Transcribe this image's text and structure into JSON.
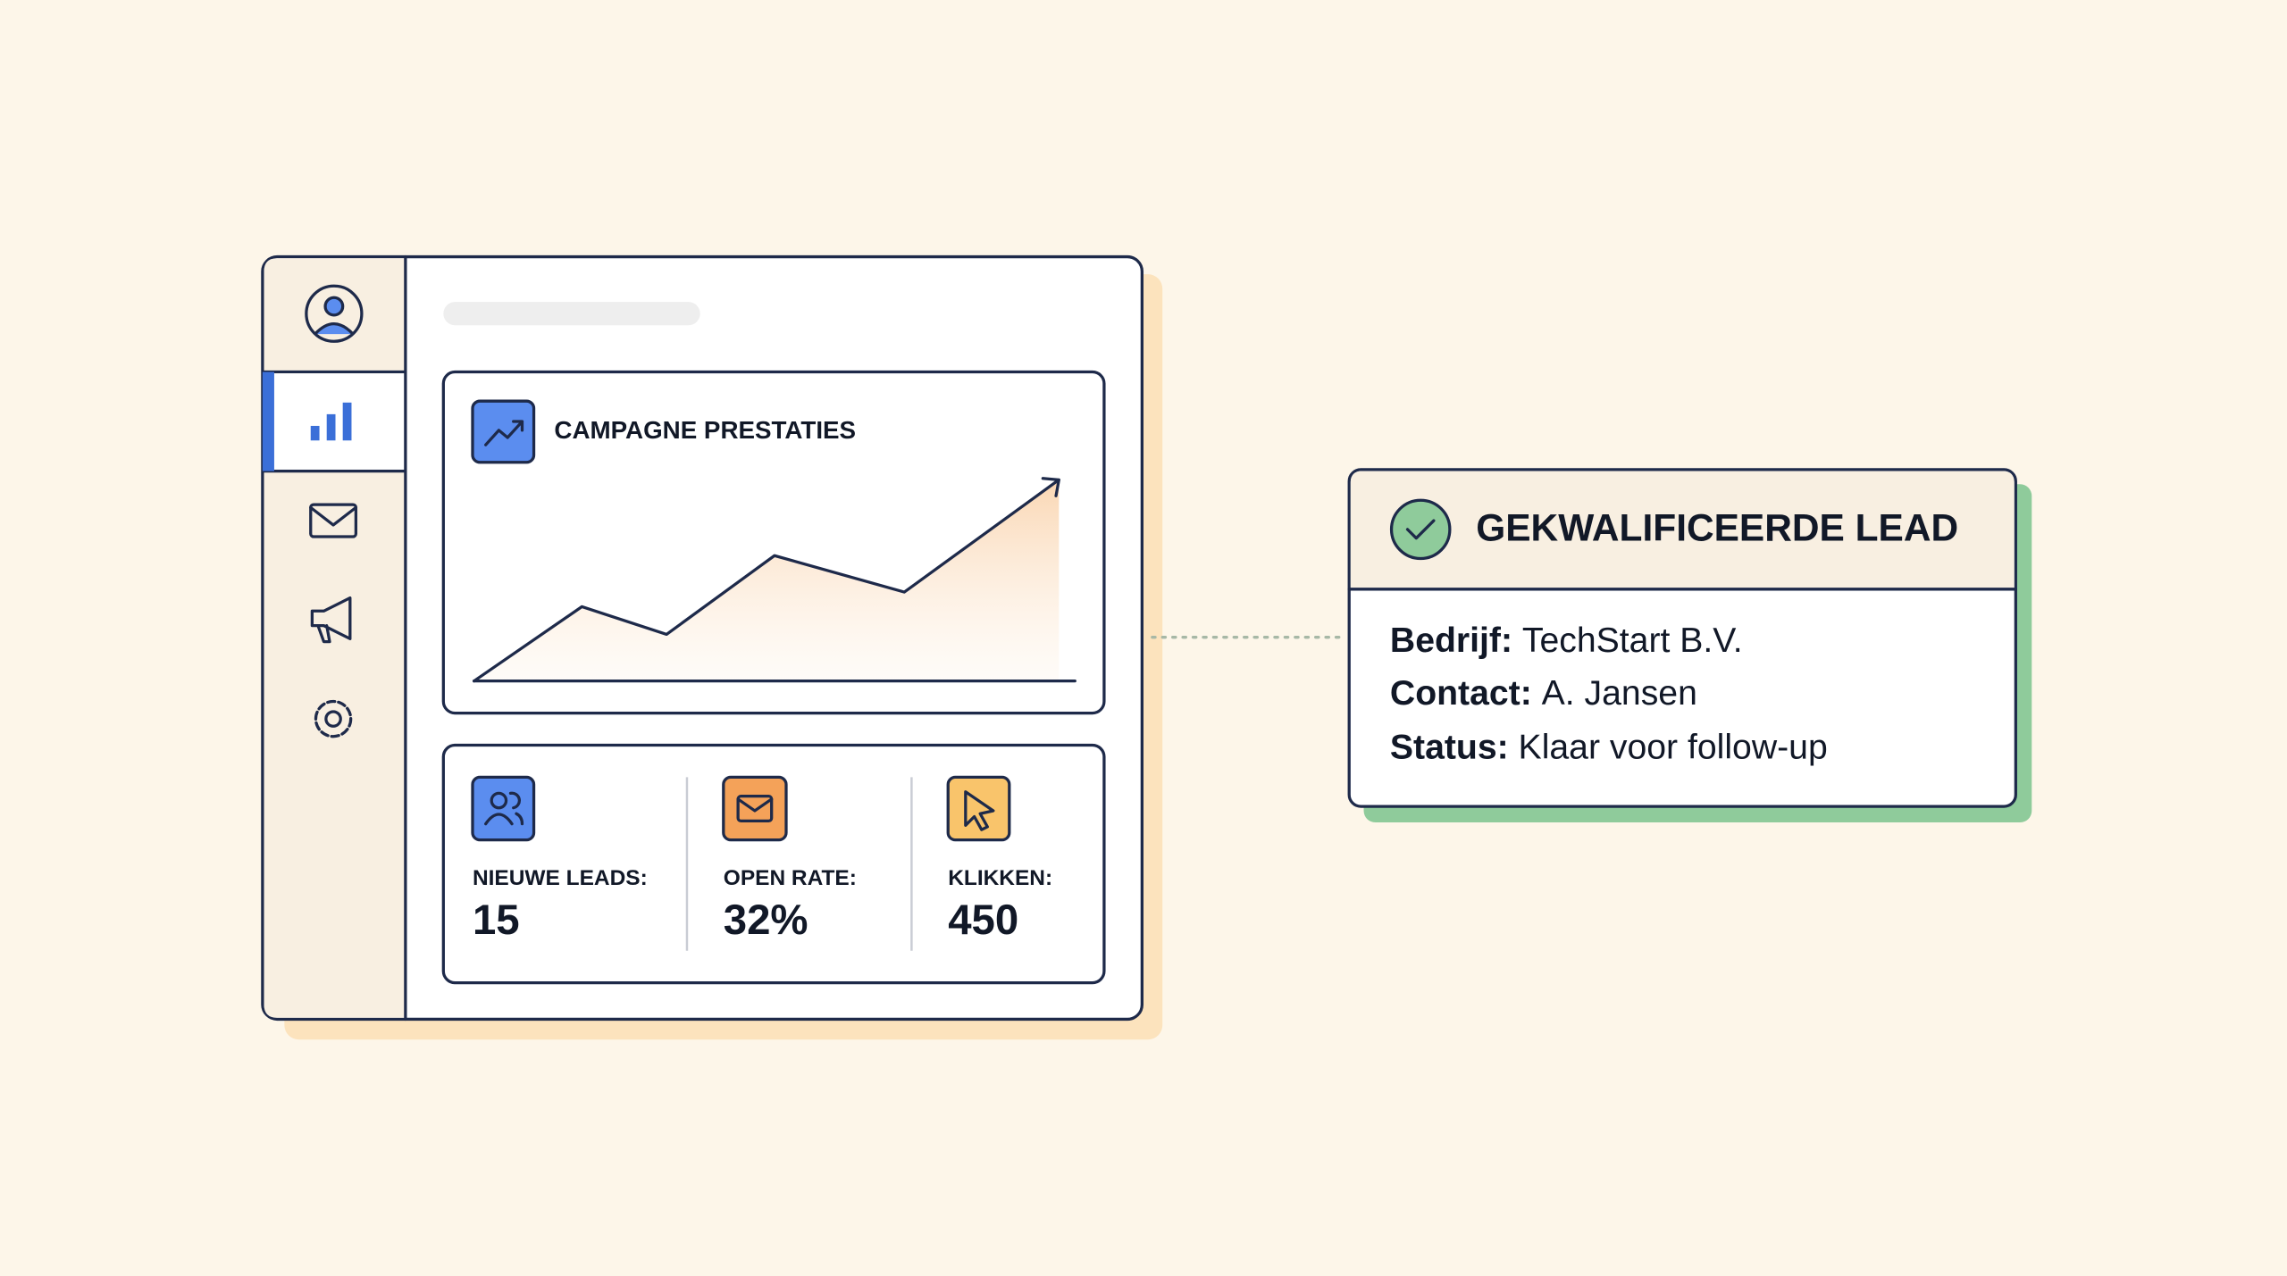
{
  "chart_card": {
    "title": "CAMPAGNE PRESTATIES"
  },
  "stats": [
    {
      "label": "NIEUWE LEADS:",
      "value": "15"
    },
    {
      "label": "OPEN RATE:",
      "value": "32%"
    },
    {
      "label": "KLIKKEN:",
      "value": "450"
    }
  ],
  "lead_card": {
    "title": "GEKWALIFICEERDE LEAD",
    "fields": [
      {
        "label": "Bedrijf:",
        "value": "TechStart B.V."
      },
      {
        "label": "Contact:",
        "value": "A. Jansen"
      },
      {
        "label": "Status:",
        "value": "Klaar voor follow-up"
      }
    ]
  }
}
